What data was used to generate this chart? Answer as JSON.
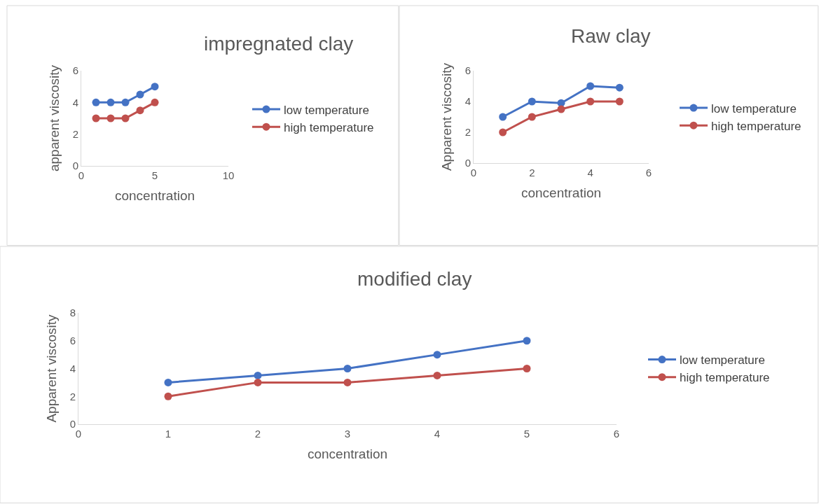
{
  "chart_data": [
    {
      "type": "line",
      "title": "impregnated clay",
      "xlabel": "concentration",
      "ylabel": "apparent viscosity",
      "x": [
        1,
        2,
        3,
        4,
        5
      ],
      "xlim": [
        0,
        10
      ],
      "xticks": [
        0,
        5,
        10
      ],
      "ylim": [
        0,
        6
      ],
      "yticks": [
        0,
        2,
        4,
        6
      ],
      "legend": "right",
      "marker": "circle",
      "line_style": "solid",
      "grid": false,
      "series": [
        {
          "name": "low temperature",
          "color": "#4472c4",
          "values": [
            4,
            4,
            4,
            4.5,
            5
          ]
        },
        {
          "name": "high temperature",
          "color": "#c0504d",
          "values": [
            3,
            3,
            3,
            3.5,
            4
          ]
        }
      ]
    },
    {
      "type": "line",
      "title": "Raw clay",
      "xlabel": "concentration",
      "ylabel": "Apparent viscosity",
      "x": [
        1,
        2,
        3,
        4,
        5
      ],
      "xlim": [
        0,
        6
      ],
      "xticks": [
        0,
        2,
        4,
        6
      ],
      "ylim": [
        0,
        6
      ],
      "yticks": [
        0,
        2,
        4,
        6
      ],
      "legend": "right",
      "marker": "circle",
      "line_style": "solid",
      "grid": false,
      "series": [
        {
          "name": "low temperature",
          "color": "#4472c4",
          "values": [
            3,
            4,
            3.9,
            5,
            4.9
          ]
        },
        {
          "name": "high temperature",
          "color": "#c0504d",
          "values": [
            2,
            3,
            3.5,
            4,
            4
          ]
        }
      ]
    },
    {
      "type": "line",
      "title": "modified clay",
      "xlabel": "concentration",
      "ylabel": "Apparent viscosity",
      "x": [
        1,
        2,
        3,
        4,
        5
      ],
      "xlim": [
        0,
        6
      ],
      "xticks": [
        0,
        1,
        2,
        3,
        4,
        5,
        6
      ],
      "ylim": [
        0,
        8
      ],
      "yticks": [
        0,
        2,
        4,
        6,
        8
      ],
      "legend": "right",
      "marker": "circle",
      "line_style": "solid",
      "grid": false,
      "series": [
        {
          "name": "low temperature",
          "color": "#4472c4",
          "values": [
            3,
            3.5,
            4,
            5,
            6
          ]
        },
        {
          "name": "high temperature",
          "color": "#c0504d",
          "values": [
            2,
            3,
            3,
            3.5,
            4
          ]
        }
      ]
    }
  ]
}
